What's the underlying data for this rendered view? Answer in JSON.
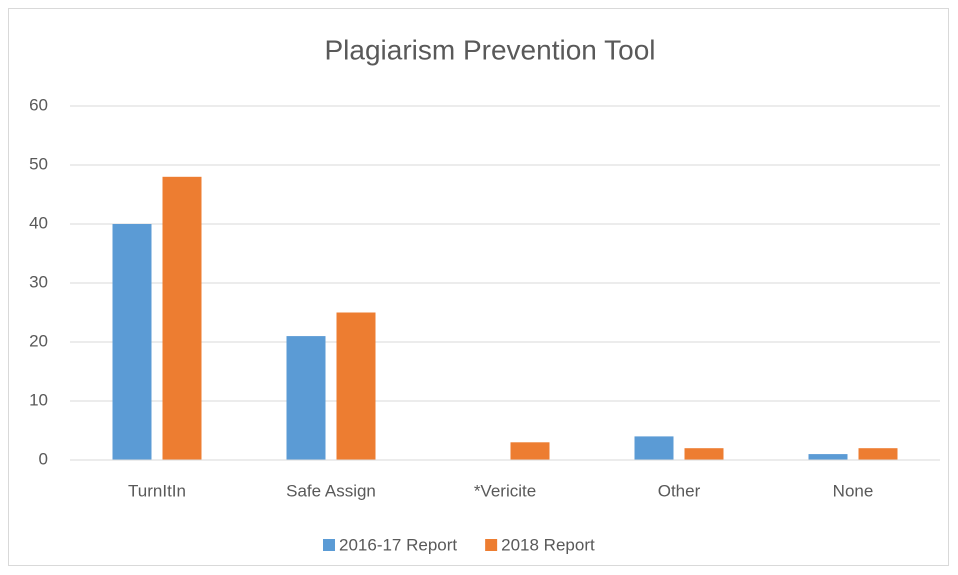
{
  "chart_data": {
    "type": "bar",
    "title": "Plagiarism Prevention Tool",
    "categories": [
      "TurnItIn",
      "Safe Assign",
      "*Vericite",
      "Other",
      "None"
    ],
    "series": [
      {
        "name": "2016-17 Report",
        "color": "#5b9bd5",
        "values": [
          40,
          21,
          0,
          4,
          1
        ]
      },
      {
        "name": "2018 Report",
        "color": "#ed7d31",
        "values": [
          48,
          25,
          3,
          2,
          2
        ]
      }
    ],
    "ylim": [
      0,
      60
    ],
    "yticks": [
      0,
      10,
      20,
      30,
      40,
      50,
      60
    ],
    "grid": true,
    "legend": "bottom"
  }
}
